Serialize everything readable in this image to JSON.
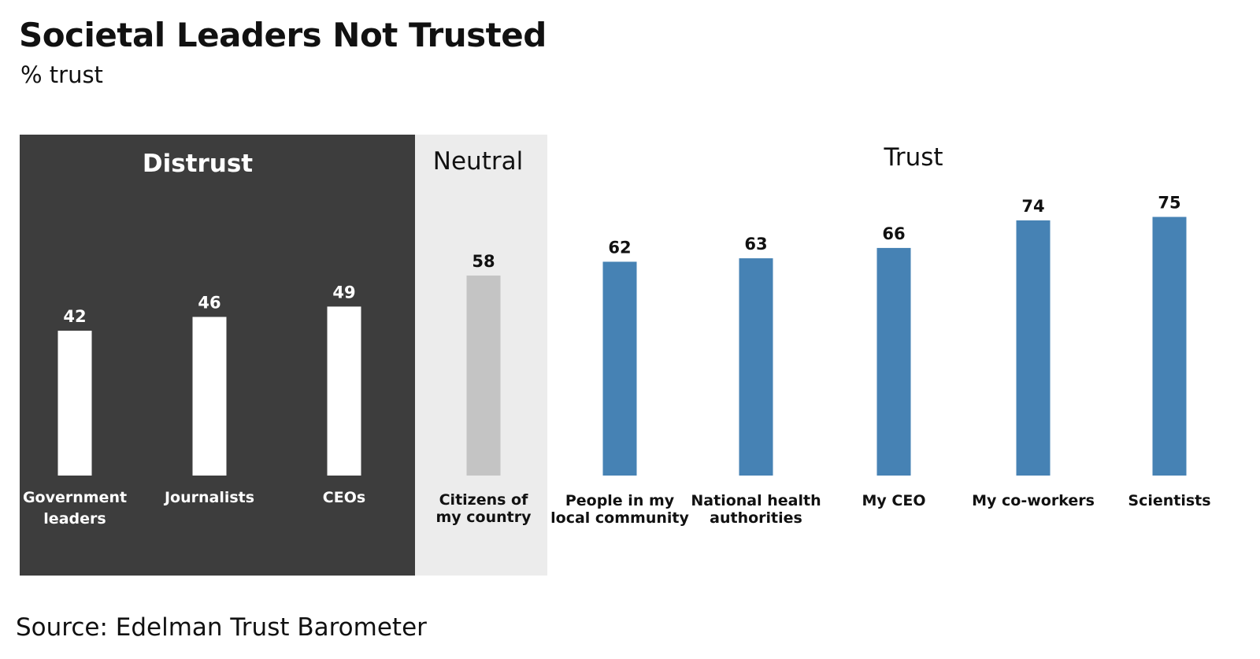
{
  "title": "Societal Leaders Not Trusted",
  "subtitle": "% trust",
  "source": "Source: Edelman Trust Barometer",
  "colors": {
    "distrust_bg": "#3d3d3d",
    "distrust_bar": "#ffffff",
    "neutral_bg": "#ececec",
    "neutral_bar": "#c4c4c4",
    "trust_bar": "#4682b4",
    "dark_text": "#111111",
    "light_text": "#ffffff"
  },
  "chart_data": {
    "type": "bar",
    "title": "Societal Leaders Not Trusted",
    "ylabel": "% trust",
    "xlabel": "",
    "ylim": [
      0,
      100
    ],
    "grid": false,
    "zones": [
      {
        "label": "Distrust",
        "categories": [
          "Government leaders",
          "Journalists",
          "CEOs"
        ]
      },
      {
        "label": "Neutral",
        "categories": [
          "Citizens of my country"
        ]
      },
      {
        "label": "Trust",
        "categories": [
          "People in my local community",
          "National health authorities",
          "My CEO",
          "My co-workers",
          "Scientists"
        ]
      }
    ],
    "categories": [
      "Government leaders",
      "Journalists",
      "CEOs",
      "Citizens of my country",
      "People in my local community",
      "National health authorities",
      "My CEO",
      "My co-workers",
      "Scientists"
    ],
    "category_lines": [
      [
        "Government",
        "leaders"
      ],
      [
        "Journalists"
      ],
      [
        "CEOs"
      ],
      [
        "Citizens of",
        "my country"
      ],
      [
        "People in my",
        "local community"
      ],
      [
        "National health",
        "authorities"
      ],
      [
        "My CEO"
      ],
      [
        "My co-workers"
      ],
      [
        "Scientists"
      ]
    ],
    "values": [
      42,
      46,
      49,
      58,
      62,
      63,
      66,
      74,
      75
    ],
    "data_labels": [
      "42",
      "46",
      "49",
      "58",
      "62",
      "63",
      "66",
      "74",
      "75"
    ]
  }
}
